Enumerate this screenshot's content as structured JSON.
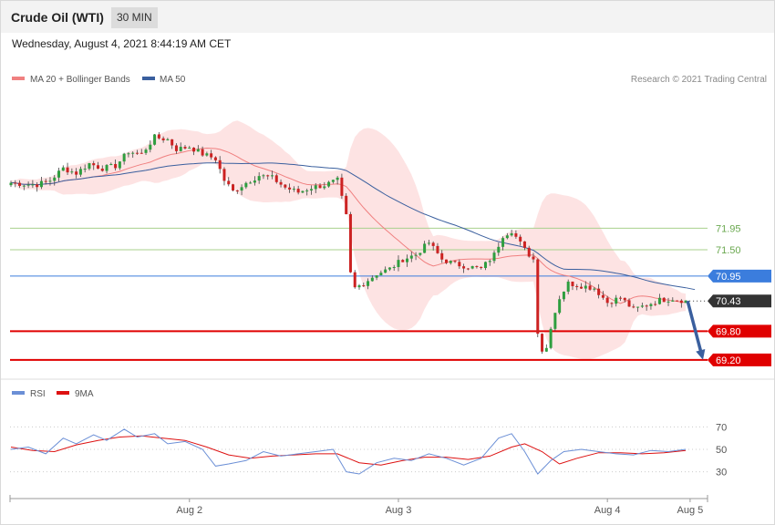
{
  "header": {
    "instrument": "Crude Oil (WTI)",
    "timeframe": "30 MIN",
    "datetime": "Wednesday, August 4, 2021 8:44:19 AM CET"
  },
  "colors": {
    "ma20": "#f08080",
    "band": "#fde0e0",
    "ma50": "#3a5f9e",
    "resistance": "#a8d08d",
    "pivot": "#3b7ddd",
    "support": "#e00000",
    "arrow": "#3a5f9e",
    "up": "#2e9e3f",
    "down": "#cc2222",
    "rsi": "#6b8fd6",
    "rsi_ma": "#dd1111"
  },
  "main_chart": {
    "legend": [
      {
        "label": "MA 20 + Bollinger Bands",
        "color": "#f08080"
      },
      {
        "label": "MA 50",
        "color": "#3a5f9e"
      }
    ],
    "credit": "Research © 2021 Trading Central",
    "y_range": [
      68.95,
      74.85
    ],
    "levels": [
      {
        "value": 71.95,
        "label": "71.95",
        "kind": "resistance"
      },
      {
        "value": 71.5,
        "label": "71.50",
        "kind": "resistance"
      },
      {
        "value": 70.95,
        "label": "70.95",
        "kind": "pivot"
      },
      {
        "value": 70.43,
        "label": "70.43",
        "kind": "last"
      },
      {
        "value": 69.8,
        "label": "69.80",
        "kind": "support"
      },
      {
        "value": 69.2,
        "label": "69.20",
        "kind": "support"
      }
    ]
  },
  "x_axis": {
    "ticks": [
      {
        "label": "Aug 2",
        "x": 41
      },
      {
        "label": "Aug 3",
        "x": 89
      },
      {
        "label": "Aug 4",
        "x": 137
      },
      {
        "label": "Aug 5",
        "x": 156
      }
    ]
  },
  "chart_data": {
    "type": "candlestick",
    "x_unit": "30-minute bars",
    "price_series": [
      {
        "x": 0,
        "close": 72.9
      },
      {
        "x": 3,
        "close": 72.87
      },
      {
        "x": 6,
        "close": 72.86
      },
      {
        "x": 9,
        "close": 72.95
      },
      {
        "x": 12,
        "close": 73.2
      },
      {
        "x": 15,
        "close": 73.1
      },
      {
        "x": 18,
        "close": 73.3
      },
      {
        "x": 21,
        "close": 73.2
      },
      {
        "x": 24,
        "close": 73.25
      },
      {
        "x": 27,
        "close": 73.55
      },
      {
        "x": 30,
        "close": 73.5
      },
      {
        "x": 33,
        "close": 73.85
      },
      {
        "x": 36,
        "close": 73.8
      },
      {
        "x": 38,
        "close": 73.6
      },
      {
        "x": 41,
        "close": 73.65
      },
      {
        "x": 44,
        "close": 73.5
      },
      {
        "x": 47,
        "close": 73.4
      },
      {
        "x": 49,
        "close": 72.95
      },
      {
        "x": 51,
        "close": 72.72
      },
      {
        "x": 54,
        "close": 72.9
      },
      {
        "x": 57,
        "close": 73.05
      },
      {
        "x": 60,
        "close": 73.0
      },
      {
        "x": 63,
        "close": 72.8
      },
      {
        "x": 66,
        "close": 72.7
      },
      {
        "x": 69,
        "close": 72.8
      },
      {
        "x": 72,
        "close": 72.85
      },
      {
        "x": 75,
        "close": 72.95
      },
      {
        "x": 77,
        "close": 72.2
      },
      {
        "x": 78,
        "close": 71.0
      },
      {
        "x": 79,
        "close": 70.7
      },
      {
        "x": 81,
        "close": 70.8
      },
      {
        "x": 84,
        "close": 71.0
      },
      {
        "x": 87,
        "close": 71.1
      },
      {
        "x": 90,
        "close": 71.3
      },
      {
        "x": 93,
        "close": 71.4
      },
      {
        "x": 96,
        "close": 71.65
      },
      {
        "x": 99,
        "close": 71.3
      },
      {
        "x": 102,
        "close": 71.2
      },
      {
        "x": 105,
        "close": 71.15
      },
      {
        "x": 108,
        "close": 71.1
      },
      {
        "x": 111,
        "close": 71.4
      },
      {
        "x": 113,
        "close": 71.8
      },
      {
        "x": 115,
        "close": 71.9
      },
      {
        "x": 118,
        "close": 71.5
      },
      {
        "x": 120,
        "close": 71.3
      },
      {
        "x": 121,
        "close": 69.8
      },
      {
        "x": 122,
        "close": 69.4
      },
      {
        "x": 123,
        "close": 69.45
      },
      {
        "x": 124,
        "close": 69.9
      },
      {
        "x": 126,
        "close": 70.5
      },
      {
        "x": 128,
        "close": 70.8
      },
      {
        "x": 131,
        "close": 70.75
      },
      {
        "x": 134,
        "close": 70.7
      },
      {
        "x": 137,
        "close": 70.4
      },
      {
        "x": 140,
        "close": 70.5
      },
      {
        "x": 143,
        "close": 70.25
      },
      {
        "x": 146,
        "close": 70.35
      },
      {
        "x": 149,
        "close": 70.45
      },
      {
        "x": 152,
        "close": 70.48
      },
      {
        "x": 155,
        "close": 70.43
      }
    ],
    "forecast": {
      "from": {
        "x": 155,
        "price": 70.43
      },
      "to": {
        "x": 160,
        "price": 69.2
      }
    },
    "rsi": {
      "legend": [
        {
          "label": "RSI",
          "color": "#6b8fd6"
        },
        {
          "label": "9MA",
          "color": "#dd1111"
        }
      ],
      "y_range": [
        15,
        85
      ],
      "ticks": [
        70,
        50,
        30
      ],
      "rsi_series": [
        {
          "x": 0,
          "y": 50
        },
        {
          "x": 4,
          "y": 52
        },
        {
          "x": 8,
          "y": 46
        },
        {
          "x": 12,
          "y": 60
        },
        {
          "x": 15,
          "y": 55
        },
        {
          "x": 19,
          "y": 63
        },
        {
          "x": 22,
          "y": 58
        },
        {
          "x": 26,
          "y": 68
        },
        {
          "x": 29,
          "y": 61
        },
        {
          "x": 33,
          "y": 64
        },
        {
          "x": 36,
          "y": 55
        },
        {
          "x": 40,
          "y": 57
        },
        {
          "x": 44,
          "y": 50
        },
        {
          "x": 47,
          "y": 35
        },
        {
          "x": 50,
          "y": 37
        },
        {
          "x": 54,
          "y": 40
        },
        {
          "x": 58,
          "y": 48
        },
        {
          "x": 62,
          "y": 44
        },
        {
          "x": 66,
          "y": 46
        },
        {
          "x": 70,
          "y": 48
        },
        {
          "x": 74,
          "y": 50
        },
        {
          "x": 77,
          "y": 30
        },
        {
          "x": 80,
          "y": 28
        },
        {
          "x": 84,
          "y": 38
        },
        {
          "x": 88,
          "y": 42
        },
        {
          "x": 92,
          "y": 40
        },
        {
          "x": 96,
          "y": 46
        },
        {
          "x": 100,
          "y": 42
        },
        {
          "x": 104,
          "y": 36
        },
        {
          "x": 108,
          "y": 42
        },
        {
          "x": 112,
          "y": 60
        },
        {
          "x": 115,
          "y": 64
        },
        {
          "x": 118,
          "y": 48
        },
        {
          "x": 121,
          "y": 28
        },
        {
          "x": 124,
          "y": 40
        },
        {
          "x": 127,
          "y": 48
        },
        {
          "x": 131,
          "y": 50
        },
        {
          "x": 135,
          "y": 48
        },
        {
          "x": 139,
          "y": 46
        },
        {
          "x": 143,
          "y": 45
        },
        {
          "x": 147,
          "y": 49
        },
        {
          "x": 151,
          "y": 48
        },
        {
          "x": 155,
          "y": 50
        }
      ],
      "ma_series": [
        {
          "x": 0,
          "y": 52
        },
        {
          "x": 5,
          "y": 49
        },
        {
          "x": 10,
          "y": 48
        },
        {
          "x": 15,
          "y": 54
        },
        {
          "x": 20,
          "y": 58
        },
        {
          "x": 25,
          "y": 61
        },
        {
          "x": 30,
          "y": 62
        },
        {
          "x": 35,
          "y": 60
        },
        {
          "x": 40,
          "y": 58
        },
        {
          "x": 45,
          "y": 52
        },
        {
          "x": 50,
          "y": 45
        },
        {
          "x": 55,
          "y": 42
        },
        {
          "x": 60,
          "y": 44
        },
        {
          "x": 65,
          "y": 45
        },
        {
          "x": 70,
          "y": 46
        },
        {
          "x": 75,
          "y": 46
        },
        {
          "x": 80,
          "y": 38
        },
        {
          "x": 85,
          "y": 36
        },
        {
          "x": 90,
          "y": 40
        },
        {
          "x": 95,
          "y": 43
        },
        {
          "x": 100,
          "y": 43
        },
        {
          "x": 105,
          "y": 41
        },
        {
          "x": 110,
          "y": 44
        },
        {
          "x": 115,
          "y": 52
        },
        {
          "x": 118,
          "y": 55
        },
        {
          "x": 122,
          "y": 48
        },
        {
          "x": 126,
          "y": 37
        },
        {
          "x": 130,
          "y": 42
        },
        {
          "x": 135,
          "y": 47
        },
        {
          "x": 140,
          "y": 47
        },
        {
          "x": 145,
          "y": 46
        },
        {
          "x": 150,
          "y": 47
        },
        {
          "x": 155,
          "y": 49
        }
      ]
    }
  }
}
